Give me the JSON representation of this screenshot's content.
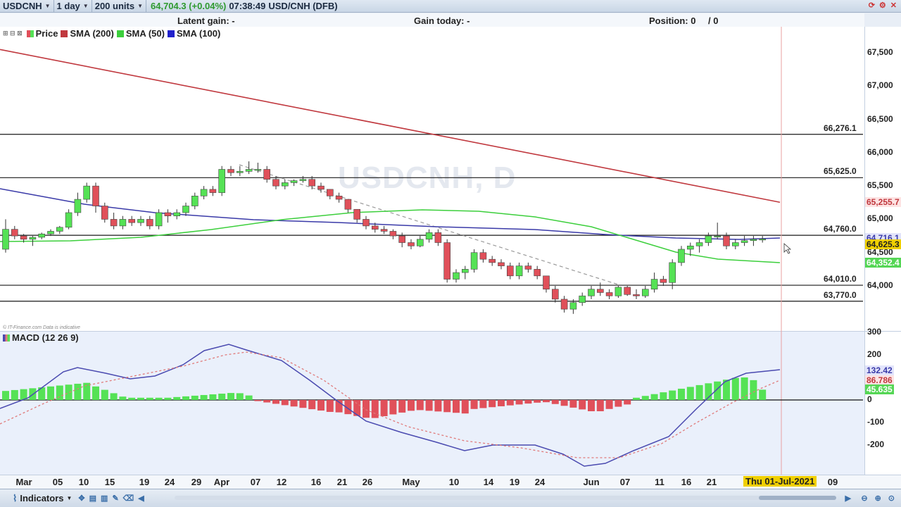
{
  "toolbar": {
    "symbol": "USDCNH",
    "interval": "1 day",
    "units": "200 units",
    "price": "64,704.3 (+0.04%)",
    "time": "07:38:49",
    "name": "USD/CNH (DFB)"
  },
  "info": {
    "latent_gain": "Latent gain: -",
    "gain_today": "Gain today: -",
    "position": "Position: 0",
    "position_extra": "/ 0"
  },
  "legend": {
    "price": "Price",
    "sma200": "SMA (200)",
    "sma50": "SMA (50)",
    "sma100": "SMA (100)",
    "macd": "MACD (12 26 9)",
    "credit": "© IT-Finance.com  Data is indicative"
  },
  "watermark": "USDCNH, D",
  "colors": {
    "up": "#55e255",
    "down": "#e0505a",
    "sma200": "#c0383e",
    "sma50": "#3ccf3c",
    "sma100": "#3a3aa8",
    "macd_line": "#4a4ab0",
    "signal_line": "#e07a7a"
  },
  "price_axis": {
    "ticks": [
      "67,500",
      "67,000",
      "66,500",
      "66,000",
      "65,500",
      "65,000",
      "64,500",
      "64,000"
    ],
    "tags": [
      {
        "text": "65,255.7",
        "color": "#c0383e",
        "bg": "#fde3e3",
        "value": 65255.7
      },
      {
        "text": "64,716.1",
        "color": "#3a3aa8",
        "bg": "#e2e4fb",
        "value": 64716.1
      },
      {
        "text": "64,625.3",
        "color": "#222222",
        "bg": "#f0d000",
        "value": 64625.3
      },
      {
        "text": "64,352.4",
        "color": "#ffffff",
        "bg": "#55d655",
        "value": 64352.4
      }
    ]
  },
  "hlines": [
    {
      "label": "66,276.1",
      "value": 66276.1
    },
    {
      "label": "65,625.0",
      "value": 65625.0
    },
    {
      "label": "64,760.0",
      "value": 64760.0
    },
    {
      "label": "64,010.0",
      "value": 64010.0
    },
    {
      "label": "63,770.0",
      "value": 63770.0
    }
  ],
  "macd_axis": {
    "ticks": [
      "300",
      "200",
      "0",
      "-100",
      "-200"
    ],
    "tags": [
      {
        "text": "132.42",
        "color": "#3a3aa8",
        "bg": "#e2e4fb",
        "value": 132.42
      },
      {
        "text": "86.786",
        "color": "#c0383e",
        "bg": "#fde3e3",
        "value": 86.786
      },
      {
        "text": "45.635",
        "color": "#ffffff",
        "bg": "#55d655",
        "value": 45.635
      }
    ]
  },
  "date_axis": [
    "Mar",
    "05",
    "10",
    "15",
    "19",
    "24",
    "29",
    "Apr",
    "07",
    "12",
    "16",
    "21",
    "26",
    "May",
    "10",
    "14",
    "19",
    "24",
    "Jun",
    "07",
    "11",
    "16",
    "21",
    "09"
  ],
  "date_cursor": "Thu 01-Jul-2021",
  "bottom": {
    "indicators": "Indicators"
  },
  "chart_data": {
    "type": "candlestick",
    "title": "USDCNH, D",
    "y_range": [
      63500,
      67800
    ],
    "candles": [
      [
        64550,
        65000,
        64500,
        64850
      ],
      [
        64850,
        64900,
        64700,
        64750
      ],
      [
        64750,
        64780,
        64650,
        64700
      ],
      [
        64700,
        64750,
        64600,
        64730
      ],
      [
        64730,
        64800,
        64700,
        64780
      ],
      [
        64780,
        64850,
        64750,
        64820
      ],
      [
        64820,
        64900,
        64780,
        64880
      ],
      [
        64880,
        65150,
        64850,
        65100
      ],
      [
        65100,
        65400,
        65050,
        65300
      ],
      [
        65300,
        65550,
        65250,
        65500
      ],
      [
        65500,
        65550,
        65100,
        65200
      ],
      [
        65200,
        65250,
        64950,
        65000
      ],
      [
        65000,
        65100,
        64850,
        64900
      ],
      [
        64900,
        65050,
        64850,
        65000
      ],
      [
        65000,
        65050,
        64900,
        64950
      ],
      [
        64950,
        65050,
        64900,
        65000
      ],
      [
        65000,
        65050,
        64850,
        64900
      ],
      [
        64900,
        65150,
        64850,
        65100
      ],
      [
        65100,
        65150,
        64950,
        65050
      ],
      [
        65050,
        65150,
        65000,
        65100
      ],
      [
        65100,
        65250,
        65050,
        65200
      ],
      [
        65200,
        65400,
        65150,
        65350
      ],
      [
        65350,
        65500,
        65300,
        65450
      ],
      [
        65450,
        65500,
        65350,
        65400
      ],
      [
        65400,
        65800,
        65350,
        65750
      ],
      [
        65750,
        65800,
        65650,
        65700
      ],
      [
        65700,
        65800,
        65650,
        65720
      ],
      [
        65720,
        65870,
        65680,
        65750
      ],
      [
        65750,
        65850,
        65700,
        65750
      ],
      [
        65750,
        65800,
        65550,
        65600
      ],
      [
        65600,
        65650,
        65450,
        65500
      ],
      [
        65500,
        65600,
        65450,
        65550
      ],
      [
        65550,
        65600,
        65500,
        65580
      ],
      [
        65580,
        65650,
        65550,
        65600
      ],
      [
        65600,
        65650,
        65450,
        65500
      ],
      [
        65500,
        65550,
        65400,
        65450
      ],
      [
        65450,
        65450,
        65300,
        65350
      ],
      [
        65350,
        65400,
        65250,
        65300
      ],
      [
        65300,
        65300,
        65100,
        65150
      ],
      [
        65150,
        65150,
        64950,
        65000
      ],
      [
        65000,
        65050,
        64850,
        64900
      ],
      [
        64900,
        64950,
        64800,
        64850
      ],
      [
        64850,
        64900,
        64780,
        64820
      ],
      [
        64820,
        64850,
        64700,
        64750
      ],
      [
        64750,
        64800,
        64580,
        64650
      ],
      [
        64650,
        64700,
        64550,
        64600
      ],
      [
        64600,
        64750,
        64580,
        64700
      ],
      [
        64700,
        64850,
        64650,
        64800
      ],
      [
        64800,
        64850,
        64600,
        64650
      ],
      [
        64650,
        64700,
        64050,
        64100
      ],
      [
        64100,
        64250,
        64050,
        64200
      ],
      [
        64200,
        64300,
        64100,
        64250
      ],
      [
        64250,
        64550,
        64200,
        64500
      ],
      [
        64500,
        64550,
        64350,
        64400
      ],
      [
        64400,
        64450,
        64300,
        64350
      ],
      [
        64350,
        64400,
        64250,
        64300
      ],
      [
        64300,
        64350,
        64100,
        64150
      ],
      [
        64150,
        64350,
        64100,
        64300
      ],
      [
        64300,
        64350,
        64200,
        64250
      ],
      [
        64250,
        64300,
        64100,
        64150
      ],
      [
        64150,
        64150,
        63900,
        63950
      ],
      [
        63950,
        64000,
        63750,
        63800
      ],
      [
        63800,
        63850,
        63600,
        63650
      ],
      [
        63650,
        63800,
        63580,
        63750
      ],
      [
        63750,
        63900,
        63700,
        63850
      ],
      [
        63850,
        64000,
        63800,
        63950
      ],
      [
        63950,
        64050,
        63850,
        63900
      ],
      [
        63900,
        63950,
        63800,
        63850
      ],
      [
        63850,
        64000,
        63820,
        63980
      ],
      [
        63980,
        64000,
        63850,
        63870
      ],
      [
        63870,
        63950,
        63800,
        63850
      ],
      [
        63850,
        64000,
        63820,
        63950
      ],
      [
        63950,
        64200,
        63900,
        64100
      ],
      [
        64100,
        64150,
        64000,
        64050
      ],
      [
        64050,
        64400,
        63950,
        64350
      ],
      [
        64350,
        64600,
        64300,
        64550
      ],
      [
        64550,
        64650,
        64450,
        64600
      ],
      [
        64600,
        64700,
        64500,
        64650
      ],
      [
        64650,
        64800,
        64600,
        64750
      ],
      [
        64750,
        64950,
        64700,
        64750
      ],
      [
        64750,
        64800,
        64550,
        64600
      ],
      [
        64600,
        64700,
        64550,
        64650
      ],
      [
        64650,
        64750,
        64600,
        64680
      ],
      [
        64680,
        64750,
        64600,
        64700
      ],
      [
        64700,
        64750,
        64650,
        64705
      ]
    ],
    "sma200": [
      [
        0,
        67550
      ],
      [
        102,
        65255.7
      ]
    ],
    "sma100_start": 65450,
    "sma100_end": 64716.1,
    "sma50_end": 64352.4,
    "macd": {
      "y_range": [
        -300,
        300
      ],
      "last_macd": 132.42,
      "last_signal": 86.786,
      "last_hist": 45.635
    }
  }
}
